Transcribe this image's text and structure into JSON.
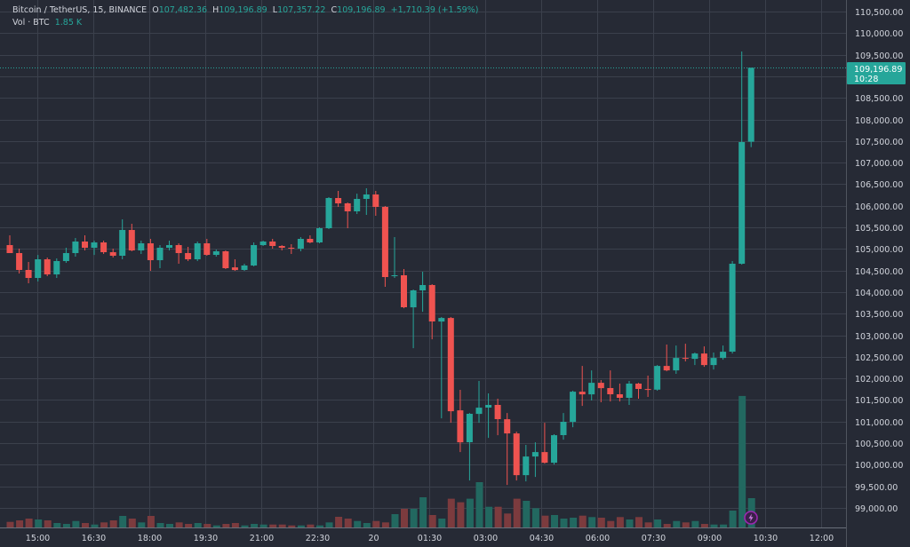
{
  "header": {
    "symbol": "Bitcoin / TetherUS, 15, BINANCE",
    "o_label": "O",
    "o_value": "107,482.36",
    "h_label": "H",
    "h_value": "109,196.89",
    "l_label": "L",
    "l_value": "107,357.22",
    "c_label": "C",
    "c_value": "109,196.89",
    "change": "+1,710.39 (+1.59%)",
    "vol_label": "Vol · BTC",
    "vol_value": "1.85 K"
  },
  "price_tag": {
    "price": "109,196.89",
    "countdown": "10:28"
  },
  "colors": {
    "up": "#26a69a",
    "down": "#ef5350",
    "up_vol": "#226860",
    "down_vol": "#7c3b3e",
    "background": "#262a35",
    "grid": "#3b404c",
    "event": "#9c27b0"
  },
  "event_icon": "lightning-icon",
  "chart_data": {
    "type": "candlestick",
    "title": "Bitcoin / TetherUS, 15, BINANCE",
    "interval_minutes": 15,
    "ylim": [
      98750,
      110750
    ],
    "y_ticks": [
      "110,500.00",
      "110,000.00",
      "109,500.00",
      "109,000.00",
      "108,500.00",
      "108,000.00",
      "107,500.00",
      "107,000.00",
      "106,500.00",
      "106,000.00",
      "105,500.00",
      "105,000.00",
      "104,500.00",
      "104,000.00",
      "103,500.00",
      "103,000.00",
      "102,500.00",
      "102,000.00",
      "101,500.00",
      "101,000.00",
      "100,500.00",
      "100,000.00",
      "99,500.00",
      "99,000.00"
    ],
    "x_ticks": [
      "15:00",
      "16:30",
      "18:00",
      "19:30",
      "21:00",
      "22:30",
      "20",
      "01:30",
      "03:00",
      "04:30",
      "06:00",
      "07:30",
      "09:00",
      "10:30",
      "12:00"
    ],
    "grid": true,
    "ohlc": [
      [
        105088,
        105314,
        104903,
        104903
      ],
      [
        104903,
        105006,
        104430,
        104512
      ],
      [
        104512,
        104697,
        104203,
        104327
      ],
      [
        104327,
        104861,
        104245,
        104759
      ],
      [
        104759,
        104800,
        104368,
        104409
      ],
      [
        104409,
        104780,
        104327,
        104718
      ],
      [
        104718,
        105026,
        104677,
        104903
      ],
      [
        104903,
        105253,
        104820,
        105170
      ],
      [
        105170,
        105314,
        104964,
        105026
      ],
      [
        105026,
        105191,
        104861,
        105150
      ],
      [
        105150,
        105191,
        104882,
        104923
      ],
      [
        104923,
        105006,
        104800,
        104841
      ],
      [
        104841,
        105685,
        104759,
        105438
      ],
      [
        105438,
        105582,
        104944,
        104964
      ],
      [
        104964,
        105191,
        104882,
        105129
      ],
      [
        105129,
        105232,
        104491,
        104738
      ],
      [
        104738,
        105088,
        104553,
        105026
      ],
      [
        105026,
        105191,
        104964,
        105088
      ],
      [
        105088,
        105129,
        104656,
        104903
      ],
      [
        104903,
        105047,
        104718,
        104759
      ],
      [
        104759,
        105170,
        104718,
        105129
      ],
      [
        105129,
        105232,
        104841,
        104861
      ],
      [
        104861,
        104985,
        104820,
        104944
      ],
      [
        104944,
        104964,
        104533,
        104553
      ],
      [
        104573,
        104759,
        104491,
        104512
      ],
      [
        104512,
        104656,
        104491,
        104615
      ],
      [
        104615,
        105150,
        104594,
        105088
      ],
      [
        105088,
        105191,
        105067,
        105170
      ],
      [
        105170,
        105232,
        105006,
        105067
      ],
      [
        105067,
        105088,
        104964,
        105026
      ],
      [
        105026,
        105109,
        104882,
        105006
      ],
      [
        105006,
        105273,
        104944,
        105232
      ],
      [
        105232,
        105314,
        105129,
        105150
      ],
      [
        105150,
        105500,
        105129,
        105479
      ],
      [
        105479,
        106200,
        105458,
        106179
      ],
      [
        106179,
        106343,
        105973,
        106055
      ],
      [
        106055,
        106076,
        105479,
        105870
      ],
      [
        105870,
        106280,
        105808,
        106158
      ],
      [
        106158,
        106405,
        105788,
        106261
      ],
      [
        106261,
        106343,
        105767,
        105973
      ],
      [
        105973,
        105994,
        104121,
        104347
      ],
      [
        104368,
        105273,
        104327,
        104388
      ],
      [
        104388,
        104533,
        103626,
        103647
      ],
      [
        103647,
        104060,
        102700,
        104039
      ],
      [
        104039,
        104471,
        103544,
        104162
      ],
      [
        104162,
        104183,
        102906,
        103318
      ],
      [
        103318,
        103421,
        101075,
        103400
      ],
      [
        103400,
        103421,
        100972,
        101240
      ],
      [
        101260,
        101734,
        100293,
        100519
      ],
      [
        100519,
        101198,
        99634,
        101178
      ],
      [
        101178,
        101940,
        100972,
        101322
      ],
      [
        101322,
        101652,
        100622,
        101384
      ],
      [
        101384,
        101528,
        100684,
        101054
      ],
      [
        101054,
        101198,
        99531,
        100725
      ],
      [
        100725,
        100766,
        99634,
        99758
      ],
      [
        99758,
        100458,
        99614,
        100190
      ],
      [
        100190,
        100519,
        99717,
        100293
      ],
      [
        100293,
        100972,
        100025,
        100046
      ],
      [
        100046,
        100705,
        100005,
        100684
      ],
      [
        100684,
        101198,
        100581,
        100993
      ],
      [
        100993,
        101713,
        100869,
        101692
      ],
      [
        101692,
        102289,
        101363,
        101631
      ],
      [
        101631,
        102186,
        101487,
        101898
      ],
      [
        101898,
        101960,
        101446,
        101775
      ],
      [
        101775,
        102186,
        101466,
        101631
      ],
      [
        101631,
        101878,
        101466,
        101549
      ],
      [
        101549,
        101940,
        101384,
        101878
      ],
      [
        101878,
        101898,
        101528,
        101754
      ],
      [
        101754,
        102063,
        101569,
        101740
      ],
      [
        101740,
        102309,
        101713,
        102289
      ],
      [
        102289,
        102783,
        102165,
        102186
      ],
      [
        102186,
        102762,
        102104,
        102474
      ],
      [
        102474,
        102803,
        102392,
        102453
      ],
      [
        102453,
        102598,
        102309,
        102577
      ],
      [
        102577,
        102741,
        102268,
        102309
      ],
      [
        102309,
        102598,
        102206,
        102474
      ],
      [
        102474,
        102762,
        102433,
        102618
      ],
      [
        102618,
        104718,
        102577,
        104656
      ],
      [
        104656,
        109574,
        104635,
        107475
      ],
      [
        107482.36,
        109196.89,
        107357.22,
        109196.89
      ]
    ],
    "volume": [
      355,
      449,
      561,
      505,
      449,
      281,
      224,
      411,
      281,
      187,
      318,
      449,
      729,
      561,
      318,
      729,
      281,
      224,
      318,
      224,
      281,
      224,
      131,
      224,
      281,
      131,
      224,
      187,
      187,
      187,
      131,
      131,
      187,
      131,
      318,
      673,
      561,
      411,
      281,
      411,
      318,
      842,
      1178,
      1178,
      1907,
      785,
      561,
      1814,
      1590,
      1814,
      2861,
      1309,
      1309,
      879,
      1814,
      1683,
      1216,
      748,
      785,
      561,
      617,
      748,
      655,
      617,
      411,
      655,
      505,
      655,
      318,
      505,
      224,
      411,
      318,
      411,
      224,
      187,
      187,
      1066,
      8303,
      1850
    ],
    "last_price": 109196.89
  }
}
